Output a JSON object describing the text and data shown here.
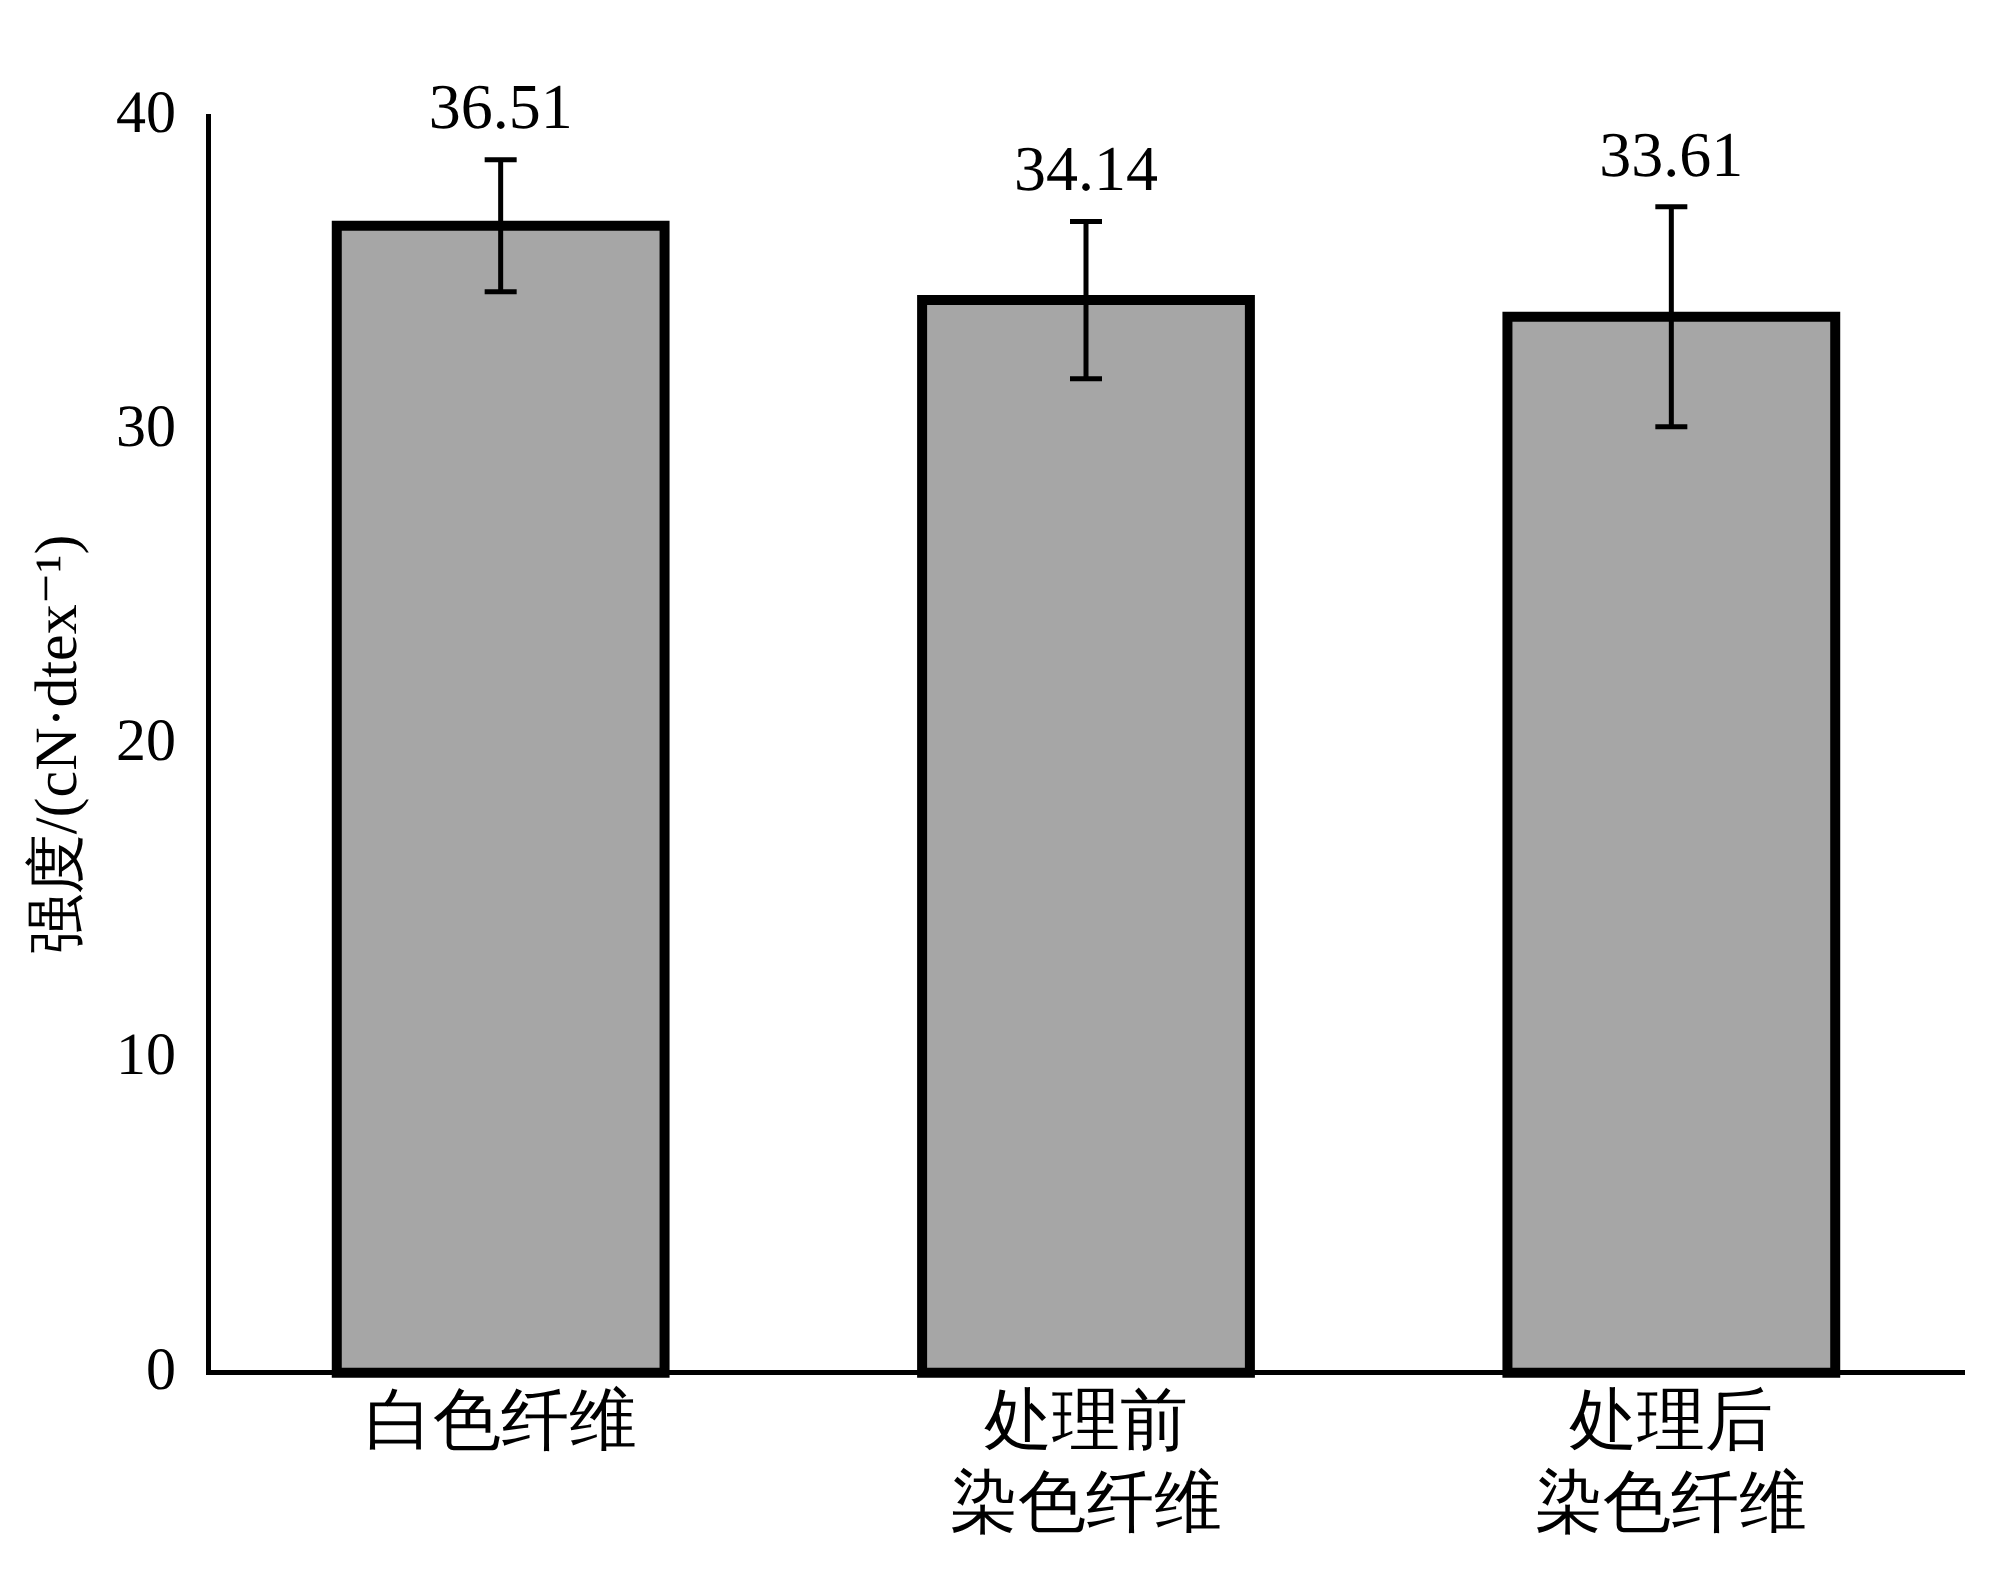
{
  "chart_data": {
    "type": "bar",
    "ylabel": "强度/(cN·dtex⁻¹)",
    "categories": [
      "白色纤维",
      "处理前染色纤维",
      "处理后染色纤维"
    ],
    "values": [
      36.51,
      34.14,
      33.61
    ],
    "errors": [
      2.1,
      2.5,
      3.5
    ],
    "color": "#a6a6a6",
    "ylim": [
      0,
      40
    ],
    "yticks": [
      0,
      10,
      20,
      30,
      40
    ],
    "grid": false,
    "data_labels": true
  }
}
